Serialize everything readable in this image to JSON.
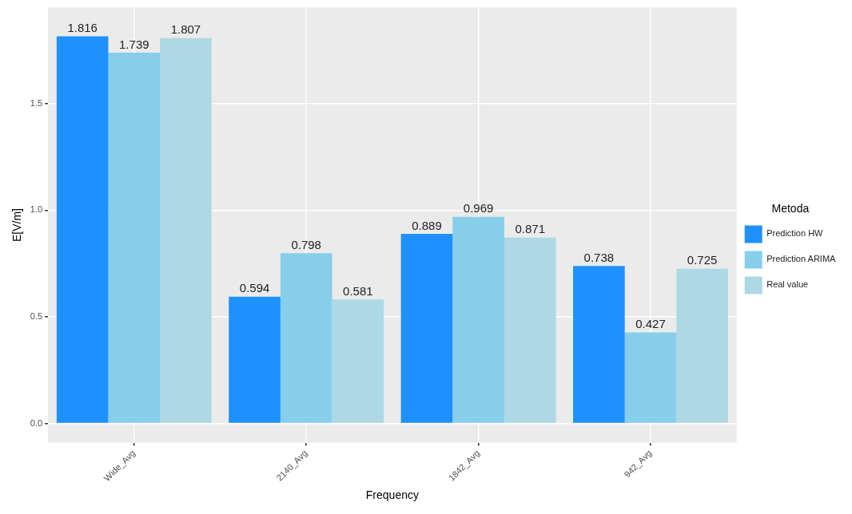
{
  "chart_data": {
    "type": "bar",
    "xlabel": "Frequency",
    "ylabel": "E[V/m]",
    "legend_title": "Metoda",
    "categories": [
      "Wide_Avg",
      "2140_Avg",
      "1842_Avg",
      "942_Avg"
    ],
    "series": [
      {
        "name": "Prediction HW",
        "color": "#1e90ff",
        "values": [
          1.816,
          0.594,
          0.889,
          0.738
        ]
      },
      {
        "name": "Prediction ARIMA",
        "color": "#87ceeb",
        "values": [
          1.739,
          0.798,
          0.969,
          0.427
        ]
      },
      {
        "name": "Real value",
        "color": "#add8e6",
        "values": [
          1.807,
          0.581,
          0.871,
          0.725
        ]
      }
    ],
    "ylim": [
      -0.09,
      1.95
    ],
    "yticks": [
      {
        "value": 0,
        "label": "0.0"
      },
      0.5,
      {
        "value": 1,
        "label": "1.0"
      },
      1.5
    ],
    "grid": true,
    "legend": "right",
    "data_labels": true
  }
}
